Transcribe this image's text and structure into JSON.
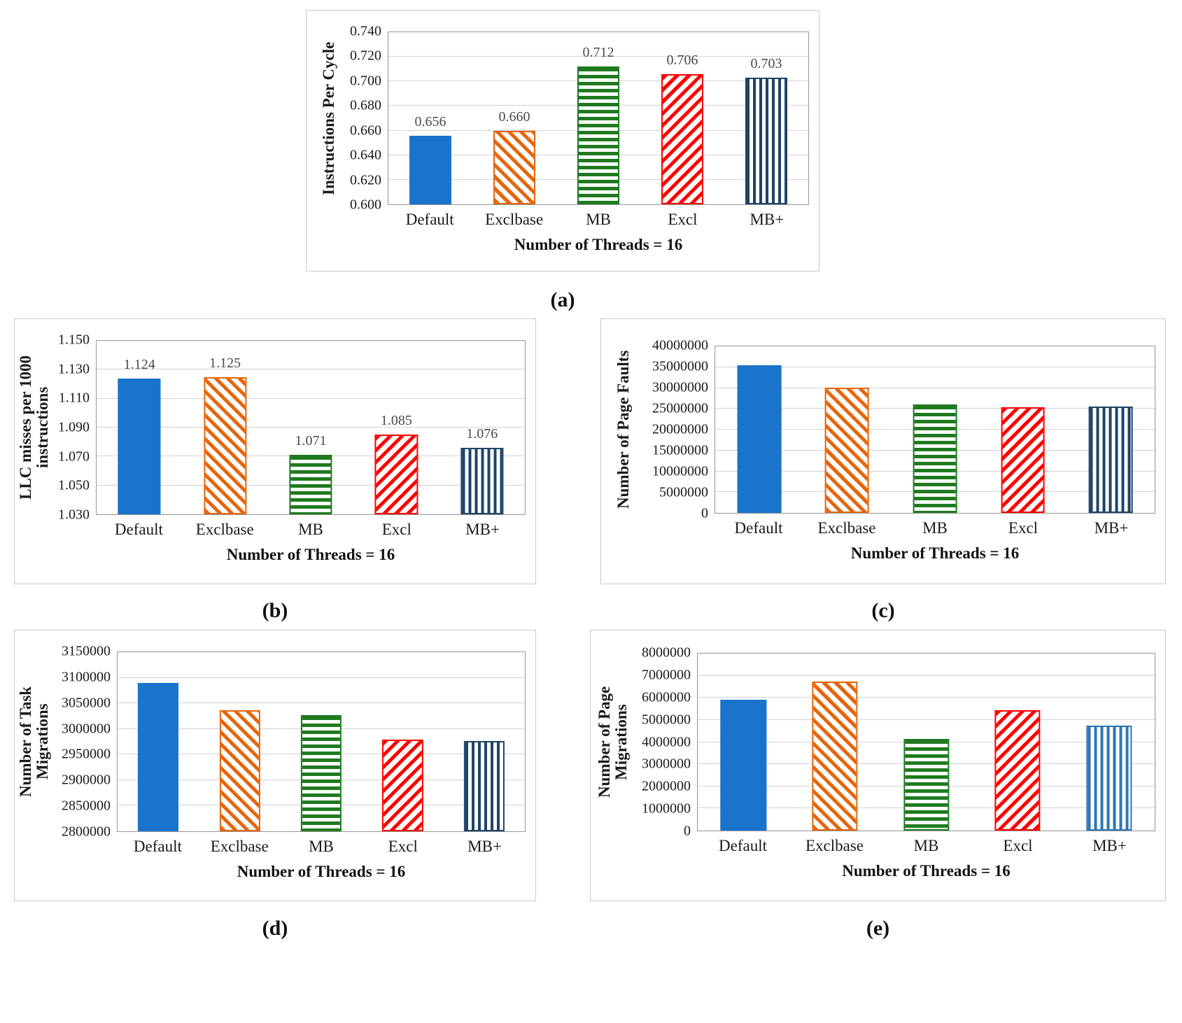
{
  "captions": {
    "a": "(a)",
    "b": "(b)",
    "c": "(c)",
    "d": "(d)",
    "e": "(e)"
  },
  "palette": {
    "solid_blue": "#1b74cc",
    "orange": "#e6660d",
    "green": "#1f7a1f",
    "red": "#ff0000",
    "navy": "#1f4467",
    "medium_blue": "#2e76b5",
    "gridline": "#d2d2d2",
    "plot_border": "#969696",
    "value_label": "#484848"
  },
  "chart_data": [
    {
      "panel": "a",
      "type": "bar",
      "title": "",
      "ylabel": "Instructions Per Cycle",
      "xlabel": "Number of Threads = 16",
      "categories": [
        "Default",
        "Exclbase",
        "MB",
        "Excl",
        "MB+"
      ],
      "values": [
        0.656,
        0.66,
        0.712,
        0.706,
        0.703
      ],
      "value_labels": [
        "0.656",
        "0.660",
        "0.712",
        "0.706",
        "0.703"
      ],
      "ylim": [
        0.6,
        0.74
      ],
      "yticks": [
        "0.600",
        "0.620",
        "0.640",
        "0.660",
        "0.680",
        "0.700",
        "0.720",
        "0.740"
      ],
      "grid": true,
      "legend": "none",
      "bar_styles": [
        {
          "name": "Default",
          "color": "#1b74cc",
          "pattern": "solid"
        },
        {
          "name": "Exclbase",
          "color": "#e6660d",
          "pattern": "diag-up"
        },
        {
          "name": "MB",
          "color": "#1f7a1f",
          "pattern": "horiz"
        },
        {
          "name": "Excl",
          "color": "#ff0000",
          "pattern": "diag-down"
        },
        {
          "name": "MB+",
          "color": "#1f4467",
          "pattern": "vert"
        }
      ]
    },
    {
      "panel": "b",
      "type": "bar",
      "title": "",
      "ylabel": "LLC misses per 1000 instructions",
      "xlabel": "Number of Threads = 16",
      "categories": [
        "Default",
        "Exclbase",
        "MB",
        "Excl",
        "MB+"
      ],
      "values": [
        1.124,
        1.125,
        1.071,
        1.085,
        1.076
      ],
      "value_labels": [
        "1.124",
        "1.125",
        "1.071",
        "1.085",
        "1.076"
      ],
      "ylim": [
        1.03,
        1.15
      ],
      "yticks": [
        "1.030",
        "1.050",
        "1.070",
        "1.090",
        "1.110",
        "1.130",
        "1.150"
      ],
      "grid": true,
      "legend": "none",
      "bar_styles": [
        {
          "name": "Default",
          "color": "#1b74cc",
          "pattern": "solid"
        },
        {
          "name": "Exclbase",
          "color": "#e6660d",
          "pattern": "diag-up"
        },
        {
          "name": "MB",
          "color": "#1f7a1f",
          "pattern": "horiz"
        },
        {
          "name": "Excl",
          "color": "#ff0000",
          "pattern": "diag-down"
        },
        {
          "name": "MB+",
          "color": "#1f4467",
          "pattern": "vert"
        }
      ]
    },
    {
      "panel": "c",
      "type": "bar",
      "title": "",
      "ylabel": "Number of Page Faults",
      "xlabel": "Number of Threads = 16",
      "categories": [
        "Default",
        "Exclbase",
        "MB",
        "Excl",
        "MB+"
      ],
      "values": [
        35500000,
        30100000,
        26000000,
        25400000,
        25500000
      ],
      "value_labels": null,
      "ylim": [
        0,
        40000000
      ],
      "yticks": [
        "0",
        "5000000",
        "10000000",
        "15000000",
        "20000000",
        "25000000",
        "30000000",
        "35000000",
        "40000000"
      ],
      "grid": true,
      "legend": "none",
      "bar_styles": [
        {
          "name": "Default",
          "color": "#1b74cc",
          "pattern": "solid"
        },
        {
          "name": "Exclbase",
          "color": "#e6660d",
          "pattern": "diag-up"
        },
        {
          "name": "MB",
          "color": "#1f7a1f",
          "pattern": "horiz"
        },
        {
          "name": "Excl",
          "color": "#ff0000",
          "pattern": "diag-down"
        },
        {
          "name": "MB+",
          "color": "#1f4467",
          "pattern": "vert"
        }
      ]
    },
    {
      "panel": "d",
      "type": "bar",
      "title": "",
      "ylabel": "Number of Task Migrations",
      "xlabel": "Number of Threads = 16",
      "categories": [
        "Default",
        "Exclbase",
        "MB",
        "Excl",
        "MB+"
      ],
      "values": [
        3090000,
        3036000,
        3027000,
        2979000,
        2977000
      ],
      "value_labels": null,
      "ylim": [
        2800000,
        3150000
      ],
      "yticks": [
        "2800000",
        "2850000",
        "2900000",
        "2950000",
        "3000000",
        "3050000",
        "3100000",
        "3150000"
      ],
      "grid": true,
      "legend": "none",
      "bar_styles": [
        {
          "name": "Default",
          "color": "#1b74cc",
          "pattern": "solid"
        },
        {
          "name": "Exclbase",
          "color": "#e6660d",
          "pattern": "diag-up"
        },
        {
          "name": "MB",
          "color": "#1f7a1f",
          "pattern": "horiz"
        },
        {
          "name": "Excl",
          "color": "#ff0000",
          "pattern": "diag-down"
        },
        {
          "name": "MB+",
          "color": "#1f4467",
          "pattern": "vert"
        }
      ]
    },
    {
      "panel": "e",
      "type": "bar",
      "title": "",
      "ylabel": "Number of Page Migrations",
      "xlabel": "Number of Threads = 16",
      "categories": [
        "Default",
        "Exclbase",
        "MB",
        "Excl",
        "MB+"
      ],
      "values": [
        5900000,
        6750000,
        4150000,
        5450000,
        4750000
      ],
      "value_labels": null,
      "ylim": [
        0,
        8000000
      ],
      "yticks": [
        "0",
        "1000000",
        "2000000",
        "3000000",
        "4000000",
        "5000000",
        "6000000",
        "7000000",
        "8000000"
      ],
      "grid": true,
      "legend": "none",
      "bar_styles": [
        {
          "name": "Default",
          "color": "#1b74cc",
          "pattern": "solid"
        },
        {
          "name": "Exclbase",
          "color": "#e6660d",
          "pattern": "diag-up"
        },
        {
          "name": "MB",
          "color": "#1f7a1f",
          "pattern": "horiz"
        },
        {
          "name": "Excl",
          "color": "#ff0000",
          "pattern": "diag-down"
        },
        {
          "name": "MB+",
          "color": "#2e76b5",
          "pattern": "vert"
        }
      ]
    }
  ]
}
